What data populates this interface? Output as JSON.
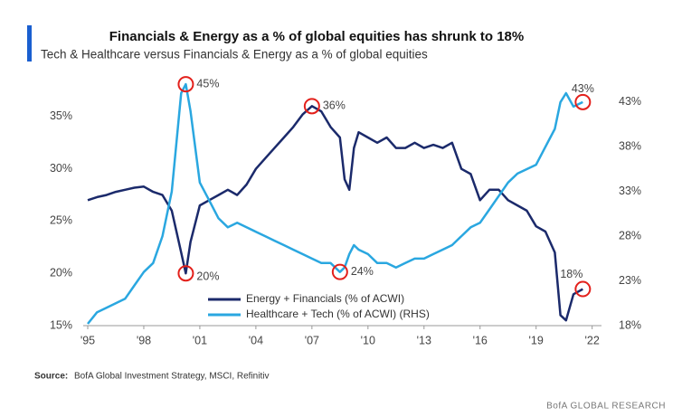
{
  "chart_data": {
    "type": "line",
    "title": "Financials & Energy as a % of global equities has shrunk to 18%",
    "subtitle": "Tech & Healthcare versus Financials & Energy as a % of global equities",
    "x": [
      1995,
      1995.5,
      1996,
      1996.5,
      1997,
      1997.5,
      1998,
      1998.5,
      1999,
      1999.5,
      2000,
      2000.25,
      2000.5,
      2001,
      2001.5,
      2002,
      2002.5,
      2003,
      2003.5,
      2004,
      2004.5,
      2005,
      2005.5,
      2006,
      2006.5,
      2007,
      2007.5,
      2008,
      2008.5,
      2008.75,
      2009,
      2009.25,
      2009.5,
      2010,
      2010.5,
      2011,
      2011.5,
      2012,
      2012.5,
      2013,
      2013.5,
      2014,
      2014.5,
      2015,
      2015.5,
      2016,
      2016.5,
      2017,
      2017.5,
      2018,
      2018.5,
      2019,
      2019.5,
      2020,
      2020.3,
      2020.6,
      2021,
      2021.5
    ],
    "series": [
      {
        "name": "Energy + Financials (% of ACWI)",
        "color": "#1b2a6b",
        "axis": "y",
        "values": [
          27,
          27.3,
          27.5,
          27.8,
          28,
          28.2,
          28.3,
          27.8,
          27.5,
          26,
          22,
          20,
          23,
          26.5,
          27,
          27.5,
          28,
          27.5,
          28.5,
          30,
          31,
          32,
          33,
          34,
          35.2,
          36,
          35.5,
          34,
          33,
          29,
          28,
          32,
          33.5,
          33,
          32.5,
          33,
          32,
          32,
          32.5,
          32,
          32.3,
          32,
          32.5,
          30,
          29.5,
          27,
          28,
          28,
          27,
          26.5,
          26,
          24.5,
          24,
          22,
          16,
          15.5,
          18,
          18.5
        ]
      },
      {
        "name": "Healthcare + Tech (% of ACWI) (RHS)",
        "color": "#2aa7e0",
        "axis": "y2",
        "values": [
          18.2,
          19.5,
          20,
          20.5,
          21,
          22.5,
          24,
          25,
          28,
          33,
          44,
          45,
          42,
          34,
          32,
          30,
          29,
          29.5,
          29,
          28.5,
          28,
          27.5,
          27,
          26.5,
          26,
          25.5,
          25,
          25,
          24,
          24.5,
          26,
          27,
          26.5,
          26,
          25,
          25,
          24.5,
          25,
          25.5,
          25.5,
          26,
          26.5,
          27,
          28,
          29,
          29.5,
          31,
          32.5,
          34,
          35,
          35.5,
          36,
          38,
          40,
          43,
          44,
          42.5,
          43
        ]
      }
    ],
    "xlim": [
      1995,
      2022.5
    ],
    "xticks": [
      {
        "value": 1995,
        "label": "'95"
      },
      {
        "value": 1998,
        "label": "'98"
      },
      {
        "value": 2001,
        "label": "'01"
      },
      {
        "value": 2004,
        "label": "'04"
      },
      {
        "value": 2007,
        "label": "'07"
      },
      {
        "value": 2010,
        "label": "'10"
      },
      {
        "value": 2013,
        "label": "'13"
      },
      {
        "value": 2016,
        "label": "'16"
      },
      {
        "value": 2019,
        "label": "'19"
      },
      {
        "value": 2022,
        "label": "'22"
      }
    ],
    "ylim": [
      15,
      37.5
    ],
    "yticks": [
      {
        "value": 15,
        "label": "15%"
      },
      {
        "value": 20,
        "label": "20%"
      },
      {
        "value": 25,
        "label": "25%"
      },
      {
        "value": 30,
        "label": "30%"
      },
      {
        "value": 35,
        "label": "35%"
      }
    ],
    "y2lim": [
      18,
      44.3
    ],
    "y2ticks": [
      {
        "value": 18,
        "label": "18%"
      },
      {
        "value": 23,
        "label": "23%"
      },
      {
        "value": 28,
        "label": "28%"
      },
      {
        "value": 33,
        "label": "33%"
      },
      {
        "value": 38,
        "label": "38%"
      },
      {
        "value": 43,
        "label": "43%"
      }
    ],
    "annotations": [
      {
        "label": "45%",
        "x": 2000.25,
        "value": 45,
        "axis": "y2"
      },
      {
        "label": "20%",
        "x": 2000.25,
        "value": 20,
        "axis": "y"
      },
      {
        "label": "36%",
        "x": 2007,
        "value": 36,
        "axis": "y"
      },
      {
        "label": "24%",
        "x": 2008.5,
        "value": 24,
        "axis": "y2"
      },
      {
        "label": "43%",
        "x": 2021.5,
        "value": 43,
        "axis": "y2"
      },
      {
        "label": "18%",
        "x": 2021.5,
        "value": 18.5,
        "axis": "y"
      }
    ],
    "annotation_color": "#e3201b",
    "legend": "bottom",
    "source_label": "Source:",
    "source": "BofA Global Investment Strategy, MSCI, Refinitiv",
    "footer": "BofA GLOBAL RESEARCH"
  }
}
